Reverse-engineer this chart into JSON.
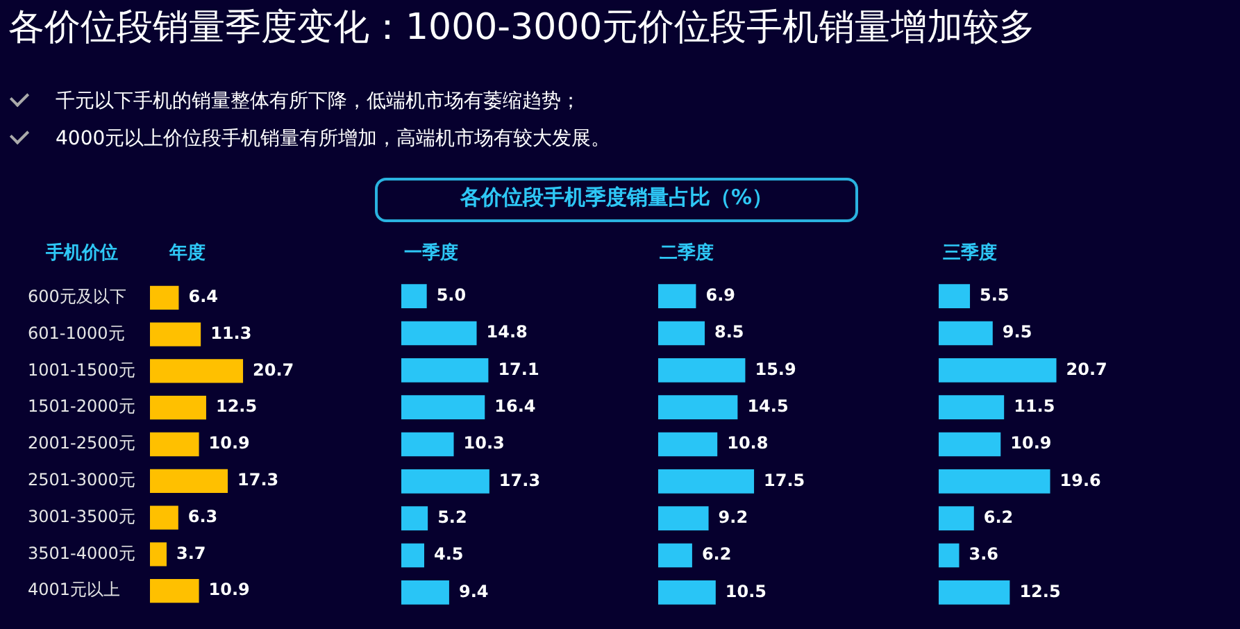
{
  "chart_data": [
    {
      "type": "bar",
      "orientation": "horizontal",
      "title": "年度",
      "ylabel": "手机价位",
      "tick_labels": "y",
      "color": "#ffc000",
      "annotations": [
        "各价位段销量季度变化：1000-3000元价位段手机销量增加较多",
        "千元以下手机的销量整体有所下降，低端机市场有萎缩趋势；",
        "4000元以上价位段手机销量有所增加，高端机市场有较大发展。",
        "各价位段手机季度销量占比（%）"
      ],
      "categories": [
        "600元及以下",
        "601-1000元",
        "1001-1500元",
        "1501-2000元",
        "2001-2500元",
        "2501-3000元",
        "3001-3500元",
        "3501-4000元",
        "4001元以上"
      ],
      "values": [
        6.4,
        11.3,
        20.7,
        12.5,
        10.9,
        17.3,
        6.3,
        3.7,
        10.9
      ],
      "value_labels": [
        "6.4",
        "11.3",
        "20.7",
        "12.5",
        "10.9",
        "17.3",
        "6.3",
        "3.7",
        "10.9"
      ]
    },
    {
      "type": "bar",
      "orientation": "horizontal",
      "title": "一季度",
      "tick_labels": false,
      "color": "#29c5f6",
      "categories": [
        null,
        null,
        null,
        null,
        null,
        null,
        null,
        null,
        null
      ],
      "values": [
        5.0,
        14.8,
        17.1,
        16.4,
        10.3,
        17.3,
        5.2,
        4.5,
        9.4
      ],
      "value_labels": [
        "5.0",
        "14.8",
        "17.1",
        "16.4",
        "10.3",
        "17.3",
        "5.2",
        "4.5",
        "9.4"
      ]
    },
    {
      "type": "bar",
      "orientation": "horizontal",
      "title": "二季度",
      "tick_labels": false,
      "color": "#29c5f6",
      "categories": [
        null,
        null,
        null,
        null,
        null,
        null,
        null,
        null,
        null
      ],
      "values": [
        6.9,
        8.5,
        15.9,
        14.5,
        10.8,
        17.5,
        9.2,
        6.2,
        10.5
      ],
      "value_labels": [
        "6.9",
        "8.5",
        "15.9",
        "14.5",
        "10.8",
        "17.5",
        "9.2",
        "6.2",
        "10.5"
      ]
    },
    {
      "type": "bar",
      "orientation": "horizontal",
      "title": "三季度",
      "tick_labels": false,
      "color": "#29c5f6",
      "categories": [
        null,
        null,
        null,
        null,
        null,
        null,
        null,
        null,
        null
      ],
      "values": [
        5.5,
        9.5,
        20.7,
        11.5,
        10.9,
        19.6,
        6.2,
        3.6,
        12.5
      ],
      "value_labels": [
        "5.5",
        "9.5",
        "20.7",
        "11.5",
        "10.9",
        "19.6",
        "6.2",
        "3.6",
        "12.5"
      ]
    }
  ]
}
